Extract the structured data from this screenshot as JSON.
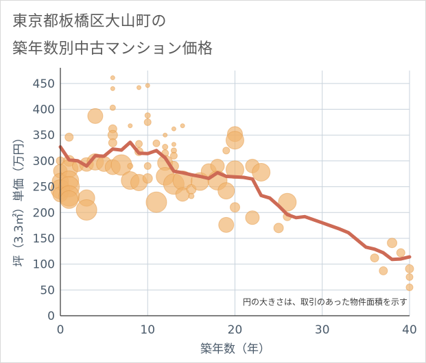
{
  "title_lines": [
    "東京都板橋区大山町の",
    "築年数別中古マンション価格"
  ],
  "chart_data": {
    "type": "scatter",
    "xlabel": "築年数（年）",
    "ylabel": "坪（3.3㎡）単価（万円）",
    "xlim": [
      0,
      40
    ],
    "ylim": [
      0,
      475
    ],
    "x_ticks": [
      "0",
      "10",
      "20",
      "30",
      "40"
    ],
    "y_ticks": [
      "0",
      "50",
      "100",
      "150",
      "200",
      "250",
      "300",
      "350",
      "400",
      "450"
    ],
    "grid": true,
    "annotation": "円の大きさは、取引のあった物件面積を示す",
    "colors": {
      "bubble": "#f0b46e",
      "line": "#cd6a55",
      "grid": "#c8d2dc",
      "axis": "#333333"
    },
    "bubbles": [
      {
        "x": 0,
        "y": 300,
        "s": 6
      },
      {
        "x": 0,
        "y": 280,
        "s": 10
      },
      {
        "x": 0,
        "y": 260,
        "s": 12
      },
      {
        "x": 0,
        "y": 245,
        "s": 14
      },
      {
        "x": 0,
        "y": 235,
        "s": 11
      },
      {
        "x": 1,
        "y": 346,
        "s": 6
      },
      {
        "x": 1,
        "y": 300,
        "s": 8
      },
      {
        "x": 1,
        "y": 285,
        "s": 13
      },
      {
        "x": 1,
        "y": 262,
        "s": 14
      },
      {
        "x": 1,
        "y": 250,
        "s": 15
      },
      {
        "x": 1,
        "y": 232,
        "s": 15
      },
      {
        "x": 1,
        "y": 225,
        "s": 13
      },
      {
        "x": 2,
        "y": 290,
        "s": 8
      },
      {
        "x": 3,
        "y": 293,
        "s": 10
      },
      {
        "x": 3,
        "y": 228,
        "s": 12
      },
      {
        "x": 3,
        "y": 205,
        "s": 15
      },
      {
        "x": 4,
        "y": 387,
        "s": 11
      },
      {
        "x": 4,
        "y": 298,
        "s": 12
      },
      {
        "x": 5,
        "y": 294,
        "s": 11
      },
      {
        "x": 6,
        "y": 461,
        "s": 3
      },
      {
        "x": 6,
        "y": 440,
        "s": 3
      },
      {
        "x": 6,
        "y": 403,
        "s": 4
      },
      {
        "x": 6,
        "y": 362,
        "s": 6
      },
      {
        "x": 6,
        "y": 350,
        "s": 7
      },
      {
        "x": 6,
        "y": 335,
        "s": 6
      },
      {
        "x": 6,
        "y": 288,
        "s": 11
      },
      {
        "x": 7,
        "y": 292,
        "s": 15
      },
      {
        "x": 8,
        "y": 368,
        "s": 3
      },
      {
        "x": 8,
        "y": 290,
        "s": 4
      },
      {
        "x": 8,
        "y": 262,
        "s": 13
      },
      {
        "x": 9,
        "y": 442,
        "s": 3
      },
      {
        "x": 9,
        "y": 333,
        "s": 5
      },
      {
        "x": 9,
        "y": 318,
        "s": 6
      },
      {
        "x": 9,
        "y": 258,
        "s": 12
      },
      {
        "x": 10,
        "y": 446,
        "s": 3
      },
      {
        "x": 10,
        "y": 388,
        "s": 4
      },
      {
        "x": 10,
        "y": 375,
        "s": 5
      },
      {
        "x": 10,
        "y": 290,
        "s": 5
      },
      {
        "x": 10,
        "y": 266,
        "s": 7
      },
      {
        "x": 11,
        "y": 334,
        "s": 5
      },
      {
        "x": 11,
        "y": 220,
        "s": 15
      },
      {
        "x": 12,
        "y": 350,
        "s": 3
      },
      {
        "x": 12,
        "y": 327,
        "s": 4
      },
      {
        "x": 12,
        "y": 315,
        "s": 5
      },
      {
        "x": 12,
        "y": 296,
        "s": 11
      },
      {
        "x": 12,
        "y": 270,
        "s": 13
      },
      {
        "x": 13,
        "y": 362,
        "s": 3
      },
      {
        "x": 13,
        "y": 332,
        "s": 3
      },
      {
        "x": 13,
        "y": 320,
        "s": 4
      },
      {
        "x": 13,
        "y": 310,
        "s": 5
      },
      {
        "x": 13,
        "y": 290,
        "s": 7
      },
      {
        "x": 13,
        "y": 255,
        "s": 15
      },
      {
        "x": 14,
        "y": 368,
        "s": 3
      },
      {
        "x": 14,
        "y": 262,
        "s": 14
      },
      {
        "x": 14,
        "y": 235,
        "s": 10
      },
      {
        "x": 15,
        "y": 245,
        "s": 7
      },
      {
        "x": 15,
        "y": 232,
        "s": 4
      },
      {
        "x": 16,
        "y": 260,
        "s": 13
      },
      {
        "x": 17,
        "y": 280,
        "s": 11
      },
      {
        "x": 18,
        "y": 290,
        "s": 10
      },
      {
        "x": 18,
        "y": 262,
        "s": 14
      },
      {
        "x": 19,
        "y": 320,
        "s": 5
      },
      {
        "x": 19,
        "y": 242,
        "s": 12
      },
      {
        "x": 19,
        "y": 176,
        "s": 11
      },
      {
        "x": 20,
        "y": 352,
        "s": 11
      },
      {
        "x": 20,
        "y": 340,
        "s": 13
      },
      {
        "x": 20,
        "y": 283,
        "s": 13
      },
      {
        "x": 20,
        "y": 210,
        "s": 7
      },
      {
        "x": 22,
        "y": 290,
        "s": 10
      },
      {
        "x": 22,
        "y": 190,
        "s": 10
      },
      {
        "x": 23,
        "y": 278,
        "s": 13
      },
      {
        "x": 25,
        "y": 170,
        "s": 7
      },
      {
        "x": 26,
        "y": 220,
        "s": 13
      },
      {
        "x": 26,
        "y": 192,
        "s": 6
      },
      {
        "x": 36,
        "y": 112,
        "s": 6
      },
      {
        "x": 37,
        "y": 87,
        "s": 6
      },
      {
        "x": 38,
        "y": 141,
        "s": 7
      },
      {
        "x": 39,
        "y": 122,
        "s": 6
      },
      {
        "x": 40,
        "y": 91,
        "s": 6
      },
      {
        "x": 40,
        "y": 75,
        "s": 5
      },
      {
        "x": 40,
        "y": 55,
        "s": 5
      }
    ],
    "trend": {
      "x": [
        0,
        1,
        2,
        3,
        4,
        5,
        6,
        7,
        8,
        9,
        10,
        11,
        12,
        13,
        14,
        15,
        16,
        17,
        18,
        19,
        20,
        21,
        22,
        23,
        24,
        25,
        26,
        27,
        28,
        29,
        30,
        31,
        32,
        33,
        34,
        35,
        36,
        37,
        38,
        39,
        40
      ],
      "y": [
        327,
        302,
        300,
        290,
        310,
        309,
        323,
        321,
        336,
        315,
        314,
        320,
        306,
        280,
        277,
        273,
        270,
        266,
        277,
        270,
        269,
        268,
        265,
        233,
        228,
        213,
        196,
        190,
        192,
        186,
        180,
        174,
        168,
        161,
        147,
        133,
        129,
        122,
        109,
        110,
        114
      ]
    }
  }
}
